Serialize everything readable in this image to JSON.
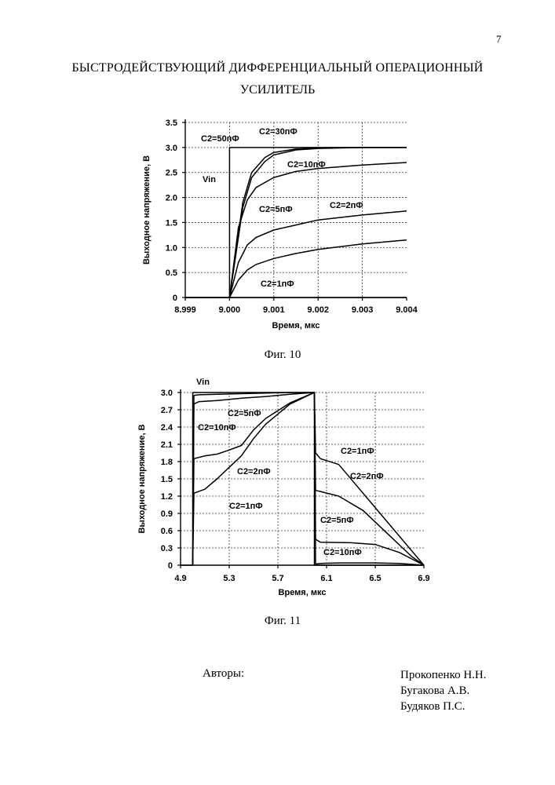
{
  "page_number": "7",
  "title_line1": "БЫСТРОДЕЙСТВУЮЩИЙ ДИФФЕРЕНЦИАЛЬНЫЙ ОПЕРАЦИОННЫЙ",
  "title_line2": "УСИЛИТЕЛЬ",
  "figures": {
    "fig10_caption": "Фиг. 10",
    "fig11_caption": "Фиг. 11"
  },
  "authors": {
    "label": "Авторы:",
    "names": [
      "Прокопенко Н.Н.",
      "Бугакова А.В.",
      "Будяков П.С."
    ]
  },
  "chart_data": [
    {
      "type": "line",
      "xlabel": "Время, мкс",
      "ylabel": "Выходное напряжение, В",
      "xlim": [
        8.999,
        9.004
      ],
      "ylim": [
        0,
        3.5
      ],
      "x_ticks": [
        "8.999",
        "9.000",
        "9.001",
        "9.002",
        "9.003",
        "9.004"
      ],
      "y_ticks": [
        "0",
        "0.5",
        "1.0",
        "1.5",
        "2.0",
        "2.5",
        "3.0",
        "3.5"
      ],
      "grid": true,
      "series": [
        {
          "name": "Vin",
          "x": [
            8.999,
            9.0,
            9.0,
            9.004
          ],
          "y": [
            0,
            0,
            3.0,
            3.0
          ]
        },
        {
          "name": "C2=50пФ",
          "x": [
            9.0,
            9.0003,
            9.0005,
            9.0008,
            9.001,
            9.0015,
            9.002,
            9.003,
            9.004
          ],
          "y": [
            0,
            1.9,
            2.5,
            2.8,
            2.9,
            2.97,
            2.99,
            3.0,
            3.0
          ]
        },
        {
          "name": "C2=30пФ",
          "x": [
            9.0,
            9.0003,
            9.0005,
            9.0008,
            9.001,
            9.0015,
            9.002,
            9.003,
            9.004
          ],
          "y": [
            0,
            1.8,
            2.4,
            2.72,
            2.85,
            2.95,
            2.98,
            3.0,
            3.0
          ]
        },
        {
          "name": "C2=10пФ",
          "x": [
            9.0,
            9.0002,
            9.0004,
            9.0006,
            9.001,
            9.0015,
            9.002,
            9.003,
            9.004
          ],
          "y": [
            0,
            1.4,
            1.95,
            2.2,
            2.4,
            2.52,
            2.58,
            2.65,
            2.7
          ]
        },
        {
          "name": "C2=5пФ",
          "x": [
            9.0,
            9.0002,
            9.0004,
            9.0006,
            9.001,
            9.0015,
            9.002,
            9.003,
            9.004
          ],
          "y": [
            0,
            0.7,
            1.05,
            1.2,
            1.35,
            1.45,
            1.55,
            1.65,
            1.73
          ]
        },
        {
          "name": "C2=2пФ",
          "x": [
            9.0,
            9.0002,
            9.0004,
            9.0006,
            9.001,
            9.0015,
            9.002,
            9.003,
            9.004
          ],
          "y": [
            0,
            0.35,
            0.55,
            0.66,
            0.78,
            0.88,
            0.96,
            1.07,
            1.15
          ]
        },
        {
          "name": "C2=1пФ",
          "x": [
            8.999,
            9.004
          ],
          "y": [
            0,
            0
          ]
        }
      ],
      "annotations": [
        "C2=50пФ",
        "C2=30пФ",
        "C2=10пФ",
        "Vin",
        "C2=5пФ",
        "C2=2пФ",
        "C2=1пФ"
      ]
    },
    {
      "type": "line",
      "xlabel": "Время, мкс",
      "ylabel": "Выходное напряжение, В",
      "xlim": [
        4.9,
        6.9
      ],
      "ylim": [
        0,
        3.0
      ],
      "x_ticks": [
        "4.9",
        "5.3",
        "5.7",
        "6.1",
        "6.5",
        "6.9"
      ],
      "y_ticks": [
        "0",
        "0.3",
        "0.6",
        "0.9",
        "1.2",
        "1.5",
        "1.8",
        "2.1",
        "2.4",
        "2.7",
        "3.0"
      ],
      "grid": true,
      "series": [
        {
          "name": "Vin",
          "x": [
            4.9,
            5.0,
            5.0,
            6.0,
            6.0,
            6.9
          ],
          "y": [
            0,
            0,
            3.0,
            3.0,
            0,
            0
          ]
        },
        {
          "name": "C2=5пФ",
          "x": [
            5.0,
            5.01,
            5.05,
            5.2,
            5.4,
            5.6,
            5.8,
            6.0,
            6.01,
            6.05,
            6.3,
            6.5,
            6.7,
            6.9
          ],
          "y": [
            0,
            2.8,
            2.84,
            2.86,
            2.9,
            2.93,
            2.97,
            3.0,
            0.45,
            0.4,
            0.39,
            0.36,
            0.22,
            0.0
          ]
        },
        {
          "name": "C2=10пФ",
          "x": [
            5.0,
            5.01,
            5.05,
            5.2,
            5.4,
            5.6,
            5.8,
            6.0,
            6.01,
            6.05,
            6.2,
            6.5,
            6.7,
            6.9
          ],
          "y": [
            0,
            2.95,
            2.96,
            2.97,
            2.98,
            2.99,
            3.0,
            3.0,
            0.02,
            0.03,
            0.04,
            0.04,
            0.03,
            0.0
          ]
        },
        {
          "name": "C2=2пФ",
          "x": [
            5.0,
            5.01,
            5.1,
            5.2,
            5.3,
            5.4,
            5.5,
            5.6,
            5.8,
            6.0,
            6.01,
            6.05,
            6.2,
            6.4,
            6.6,
            6.8,
            6.9
          ],
          "y": [
            0,
            1.85,
            1.9,
            1.93,
            2.0,
            2.08,
            2.35,
            2.55,
            2.82,
            3.0,
            1.3,
            1.28,
            1.2,
            0.95,
            0.55,
            0.15,
            0.0
          ]
        },
        {
          "name": "C2=1пФ",
          "x": [
            5.0,
            5.01,
            5.1,
            5.2,
            5.3,
            5.4,
            5.5,
            5.6,
            5.8,
            6.0,
            6.01,
            6.05,
            6.2,
            6.4,
            6.6,
            6.8,
            6.9
          ],
          "y": [
            0,
            1.25,
            1.32,
            1.5,
            1.7,
            1.9,
            2.2,
            2.45,
            2.8,
            3.0,
            1.95,
            1.85,
            1.75,
            1.25,
            0.75,
            0.25,
            0.0
          ]
        }
      ],
      "annotations": [
        "Vin",
        "C2=5пФ",
        "C2=10пФ",
        "C2=2пФ",
        "C2=1пФ",
        "C2=1пФ",
        "C2=2пФ",
        "C2=5пФ",
        "C2=10пФ"
      ]
    }
  ]
}
